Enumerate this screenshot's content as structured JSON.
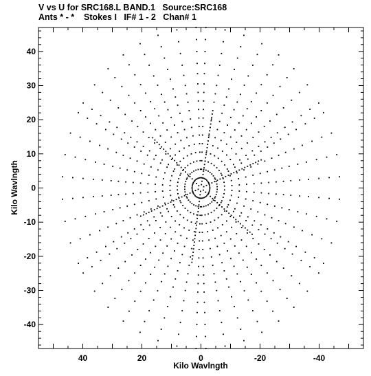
{
  "chart_data": {
    "type": "scatter",
    "title": "V vs U for SRC168.L BAND.1   Source:SRC168",
    "subtitle": "Ants * - *    Stokes I   IF# 1 - 2   Chan# 1",
    "xlabel": "Kilo Wavlngth",
    "ylabel": "Kilo Wavlngth",
    "xlim": [
      55,
      -55
    ],
    "ylim": [
      -47,
      47
    ],
    "x_ticks": [
      40,
      20,
      0,
      -20,
      -40
    ],
    "x_tick_labels": [
      "40",
      "20",
      "0",
      "-20",
      "-40"
    ],
    "y_ticks": [
      40,
      30,
      20,
      10,
      0,
      -10,
      -20,
      -30,
      -40
    ],
    "y_tick_labels": [
      "40",
      "30",
      "20",
      "10",
      "0",
      "-10",
      "-20",
      "-30",
      "-40"
    ],
    "x_minor_step": 5,
    "y_minor_step": 2,
    "grid": false,
    "legend": "none",
    "marker_color": "#000000",
    "uv_tracks": {
      "description_free_params_only": true,
      "arm_angles_deg": [
        60,
        120,
        180,
        240,
        300,
        360
      ],
      "baselines_kλ": [
        3,
        5.5,
        8,
        10.5,
        13,
        15.5,
        18,
        20.5,
        23,
        25.5,
        28,
        30.5,
        33.5,
        36.5,
        40,
        43.5,
        47
      ],
      "hour_angle_span_deg": 56,
      "points_per_track": 8,
      "spoke_angles_deg": [
        -22,
        42,
        100,
        158,
        218,
        278
      ],
      "spoke_radii_kλ": [
        1,
        2,
        3,
        4,
        5,
        6,
        7,
        8,
        9,
        10,
        11,
        12,
        13,
        14,
        15,
        16,
        17,
        18,
        19,
        20,
        21,
        22
      ]
    }
  }
}
